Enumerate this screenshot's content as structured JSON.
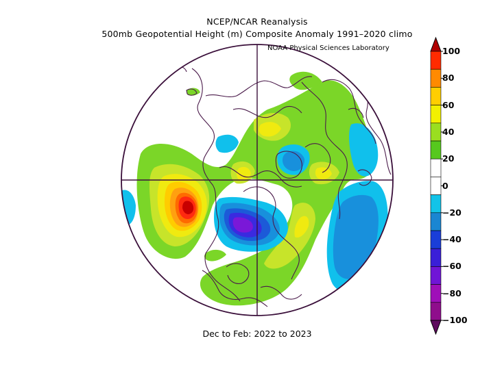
{
  "titles": {
    "line1": "NCEP/NCAR Reanalysis",
    "line2": "500mb Geopotential Height (m) Composite Anomaly 1991–2020 climo",
    "credit": "NOAA Physical Sciences Laboratory",
    "period": "Dec to Feb: 2022 to 2023"
  },
  "colorbar": {
    "levels": [
      100,
      80,
      60,
      40,
      20,
      0,
      -20,
      -40,
      -60,
      -80,
      -100
    ],
    "labels": [
      "100",
      "80",
      "60",
      "40",
      "20",
      "0",
      "−20",
      "−40",
      "−60",
      "−80",
      "−100"
    ],
    "colors": [
      "#b00000",
      "#ff2b00",
      "#ff8a00",
      "#ffce00",
      "#f2f000",
      "#9ade20",
      "#56c81e",
      "#ffffff",
      "#ffffff",
      "#12c3e8",
      "#1a86d2",
      "#1a3ed8",
      "#3a1fd8",
      "#7015d6",
      "#9f0fb8",
      "#8f0d8c",
      "#5e0a5e"
    ]
  },
  "projection": "north-polar-stereographic",
  "map_colors": {
    "coast": "#4a1a4a",
    "pos20": "#7bd628",
    "pos30": "#c7e42a",
    "pos40": "#f0ea10",
    "pos50": "#ffcc00",
    "pos60": "#ffa010",
    "pos70": "#ff6a00",
    "pos80": "#ff2a10",
    "pos100": "#c80000",
    "neg20": "#10c0ec",
    "neg30": "#1890dc",
    "neg40": "#1c5ad8",
    "neg60": "#3a2ae0",
    "neg80": "#7a18d8"
  }
}
